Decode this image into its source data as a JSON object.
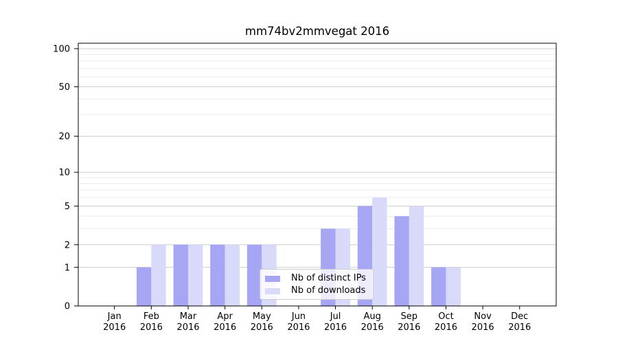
{
  "chart_data": {
    "type": "bar",
    "title": "mm74bv2mmvegat 2016",
    "categories": [
      "Jan",
      "Feb",
      "Mar",
      "Apr",
      "May",
      "Jun",
      "Jul",
      "Aug",
      "Sep",
      "Oct",
      "Nov",
      "Dec"
    ],
    "category_year": "2016",
    "series": [
      {
        "name": "Nb of distinct IPs",
        "color": "#a6a6f4",
        "values": [
          0,
          1,
          2,
          2,
          2,
          0,
          3,
          5,
          4,
          1,
          0,
          0
        ]
      },
      {
        "name": "Nb of downloads",
        "color": "#d9d9f9",
        "values": [
          0,
          2,
          2,
          2,
          2,
          0,
          3,
          6,
          5,
          1,
          0,
          0
        ]
      }
    ],
    "y_axis": {
      "scale": "log1p",
      "ticks": [
        0,
        1,
        2,
        5,
        10,
        20,
        50,
        100
      ],
      "minor_ticks": [
        3,
        4,
        6,
        7,
        8,
        9,
        30,
        40,
        60,
        70,
        80,
        90
      ],
      "ylim": [
        0,
        110.4
      ]
    },
    "xlabel": "",
    "ylabel": "",
    "grid": true,
    "legend_position": "lower center",
    "colors": {
      "background": "#ffffff",
      "axis": "#000000",
      "text": "#000000",
      "major_grid": "#cccccc",
      "minor_grid": "#ebebeb",
      "legend_border": "#cccccc"
    }
  }
}
